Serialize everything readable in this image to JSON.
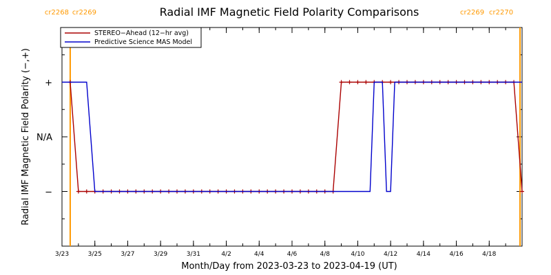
{
  "chart_data": {
    "type": "line",
    "title": "Radial IMF Magnetic Field Polarity Comparisons",
    "xlabel": "Month/Day from 2023-03-23 to 2023-04-19 (UT)",
    "ylabel": "Radial IMF Magnetic Field Polarity (−,+)",
    "xlim": [
      "2023-03-23T00:00",
      "2023-04-20T00:00"
    ],
    "x_ticks": [
      {
        "date": "2023-03-23",
        "label": "3/23"
      },
      {
        "date": "2023-03-25",
        "label": "3/25"
      },
      {
        "date": "2023-03-27",
        "label": "3/27"
      },
      {
        "date": "2023-03-29",
        "label": "3/29"
      },
      {
        "date": "2023-03-31",
        "label": "3/31"
      },
      {
        "date": "2023-04-02",
        "label": "4/2"
      },
      {
        "date": "2023-04-04",
        "label": "4/4"
      },
      {
        "date": "2023-04-06",
        "label": "4/6"
      },
      {
        "date": "2023-04-08",
        "label": "4/8"
      },
      {
        "date": "2023-04-10",
        "label": "4/10"
      },
      {
        "date": "2023-04-12",
        "label": "4/12"
      },
      {
        "date": "2023-04-14",
        "label": "4/14"
      },
      {
        "date": "2023-04-16",
        "label": "4/16"
      },
      {
        "date": "2023-04-18",
        "label": "4/18"
      }
    ],
    "y_categories": [
      {
        "value": 1,
        "label": "+"
      },
      {
        "value": 0,
        "label": "N/A"
      },
      {
        "value": -1,
        "label": "−"
      }
    ],
    "ylim": [
      -2,
      2
    ],
    "legend_position": "top-left",
    "carrington_markers": [
      {
        "date": "2023-03-23T12:00",
        "left_label": "cr2268",
        "right_label": "cr2269",
        "color": "#ff9900",
        "align": "left"
      },
      {
        "date": "2023-04-19T21:00",
        "left_label": "cr2269",
        "right_label": "cr2270",
        "color": "#ff9900",
        "align": "right"
      }
    ],
    "series": [
      {
        "name": "STEREO−Ahead (12−hr avg)",
        "color": "#aa0000",
        "marker": "plus",
        "points": [
          [
            "2023-03-23T12:00",
            1
          ],
          [
            "2023-03-24T00:00",
            -1
          ],
          [
            "2023-03-24T12:00",
            -1
          ],
          [
            "2023-03-25T00:00",
            -1
          ],
          [
            "2023-03-25T12:00",
            -1
          ],
          [
            "2023-03-26T00:00",
            -1
          ],
          [
            "2023-03-26T12:00",
            -1
          ],
          [
            "2023-03-27T00:00",
            -1
          ],
          [
            "2023-03-27T12:00",
            -1
          ],
          [
            "2023-03-28T00:00",
            -1
          ],
          [
            "2023-03-28T12:00",
            -1
          ],
          [
            "2023-03-29T00:00",
            -1
          ],
          [
            "2023-03-29T12:00",
            -1
          ],
          [
            "2023-03-30T00:00",
            -1
          ],
          [
            "2023-03-30T12:00",
            -1
          ],
          [
            "2023-03-31T00:00",
            -1
          ],
          [
            "2023-03-31T12:00",
            -1
          ],
          [
            "2023-04-01T00:00",
            -1
          ],
          [
            "2023-04-01T12:00",
            -1
          ],
          [
            "2023-04-02T00:00",
            -1
          ],
          [
            "2023-04-02T12:00",
            -1
          ],
          [
            "2023-04-03T00:00",
            -1
          ],
          [
            "2023-04-03T12:00",
            -1
          ],
          [
            "2023-04-04T00:00",
            -1
          ],
          [
            "2023-04-04T12:00",
            -1
          ],
          [
            "2023-04-05T00:00",
            -1
          ],
          [
            "2023-04-05T12:00",
            -1
          ],
          [
            "2023-04-06T00:00",
            -1
          ],
          [
            "2023-04-06T12:00",
            -1
          ],
          [
            "2023-04-07T00:00",
            -1
          ],
          [
            "2023-04-07T12:00",
            -1
          ],
          [
            "2023-04-08T00:00",
            -1
          ],
          [
            "2023-04-08T12:00",
            -1
          ],
          [
            "2023-04-09T00:00",
            1
          ],
          [
            "2023-04-09T12:00",
            1
          ],
          [
            "2023-04-10T00:00",
            1
          ],
          [
            "2023-04-10T12:00",
            1
          ],
          [
            "2023-04-11T00:00",
            1
          ],
          [
            "2023-04-11T12:00",
            1
          ],
          [
            "2023-04-12T00:00",
            1
          ],
          [
            "2023-04-12T12:00",
            1
          ],
          [
            "2023-04-13T00:00",
            1
          ],
          [
            "2023-04-13T12:00",
            1
          ],
          [
            "2023-04-14T00:00",
            1
          ],
          [
            "2023-04-14T12:00",
            1
          ],
          [
            "2023-04-15T00:00",
            1
          ],
          [
            "2023-04-15T12:00",
            1
          ],
          [
            "2023-04-16T00:00",
            1
          ],
          [
            "2023-04-16T12:00",
            1
          ],
          [
            "2023-04-17T00:00",
            1
          ],
          [
            "2023-04-17T12:00",
            1
          ],
          [
            "2023-04-18T00:00",
            1
          ],
          [
            "2023-04-18T12:00",
            1
          ],
          [
            "2023-04-19T00:00",
            1
          ],
          [
            "2023-04-19T12:00",
            1
          ],
          [
            "2023-04-20T00:00",
            -1
          ]
        ]
      },
      {
        "name": "Predictive Science MAS Model",
        "color": "#0000cc",
        "marker": "none",
        "points": [
          [
            "2023-03-23T00:00",
            1
          ],
          [
            "2023-03-24T12:00",
            1
          ],
          [
            "2023-03-25T00:00",
            -1
          ],
          [
            "2023-04-10T18:00",
            -1
          ],
          [
            "2023-04-11T00:00",
            1
          ],
          [
            "2023-04-11T12:00",
            1
          ],
          [
            "2023-04-11T18:00",
            -1
          ],
          [
            "2023-04-12T00:00",
            -1
          ],
          [
            "2023-04-12T06:00",
            1
          ],
          [
            "2023-04-20T00:00",
            1
          ]
        ]
      }
    ]
  }
}
